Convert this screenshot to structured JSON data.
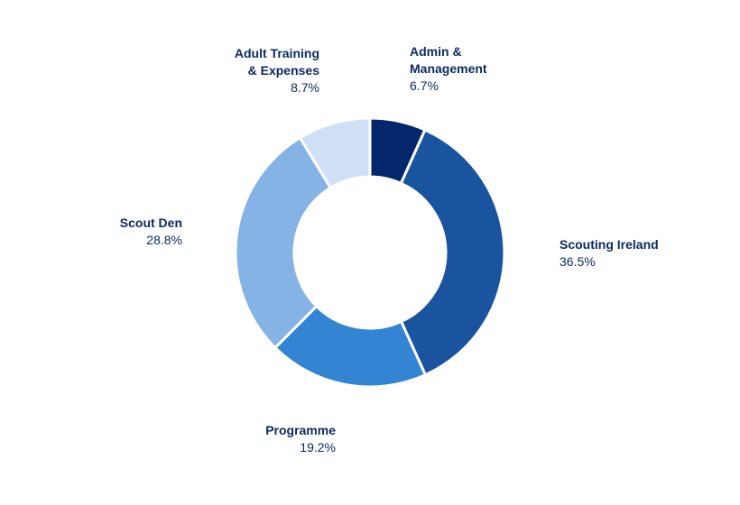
{
  "chart_data": {
    "type": "pie",
    "title": "",
    "hole": true,
    "slices": [
      {
        "name": "Admin &\nManagement",
        "value": 6.7,
        "value_label": "6.7%",
        "color": "#04266a"
      },
      {
        "name": "Scouting Ireland",
        "value": 36.5,
        "value_label": "36.5%",
        "color": "#1b549e"
      },
      {
        "name": "Programme",
        "value": 19.2,
        "value_label": "19.2%",
        "color": "#3385d4"
      },
      {
        "name": "Scout Den",
        "value": 28.8,
        "value_label": "28.8%",
        "color": "#85b3e5"
      },
      {
        "name": "Adult Training\n& Expenses",
        "value": 8.7,
        "value_label": "8.7%",
        "color": "#cfe0f6"
      }
    ]
  }
}
